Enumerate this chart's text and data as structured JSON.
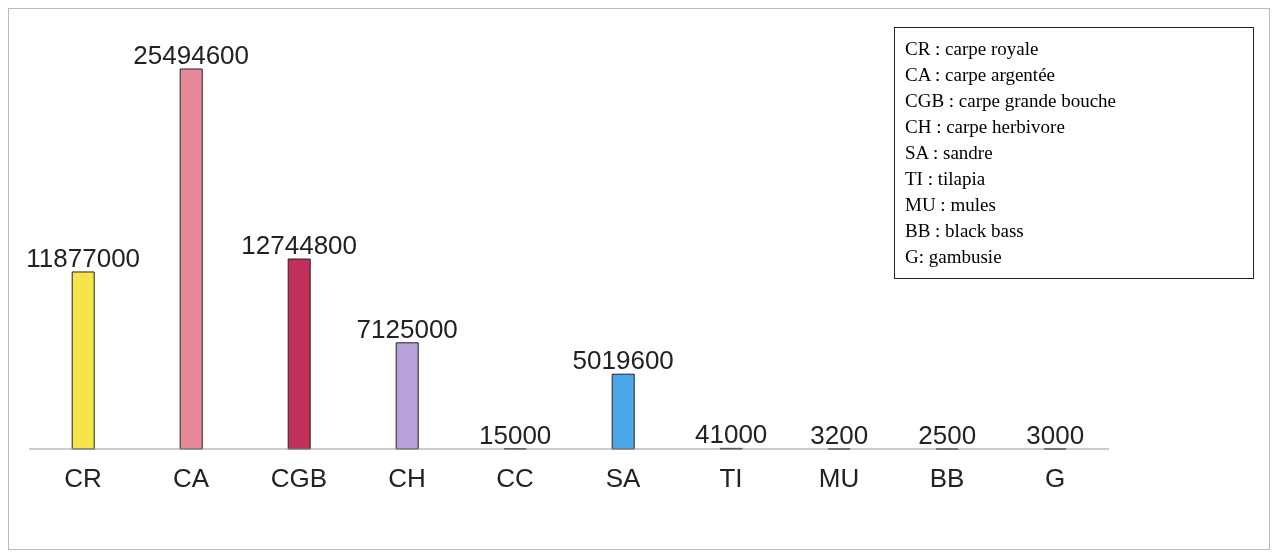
{
  "chart_data": {
    "type": "bar",
    "categories": [
      "CR",
      "CA",
      "CGB",
      "CH",
      "CC",
      "SA",
      "TI",
      "MU",
      "BB",
      "G"
    ],
    "values": [
      11877000,
      25494600,
      12744800,
      7125000,
      15000,
      5019600,
      41000,
      3200,
      2500,
      3000
    ],
    "colors": [
      "#f5e44a",
      "#e8899a",
      "#c0305a",
      "#b8a0d8",
      "#a03050",
      "#4aa8e8",
      "#4a6ad0",
      "#a8c040",
      "#f08030",
      "#d0a040"
    ],
    "data_labels": true,
    "annotations": [
      "CR : carpe royale",
      "CA : carpe argentée",
      "CGB : carpe grande bouche",
      "CH : carpe herbivore",
      "SA : sandre",
      "TI : tilapia",
      "MU : mules",
      "BB : black bass",
      "G: gambusie"
    ]
  }
}
